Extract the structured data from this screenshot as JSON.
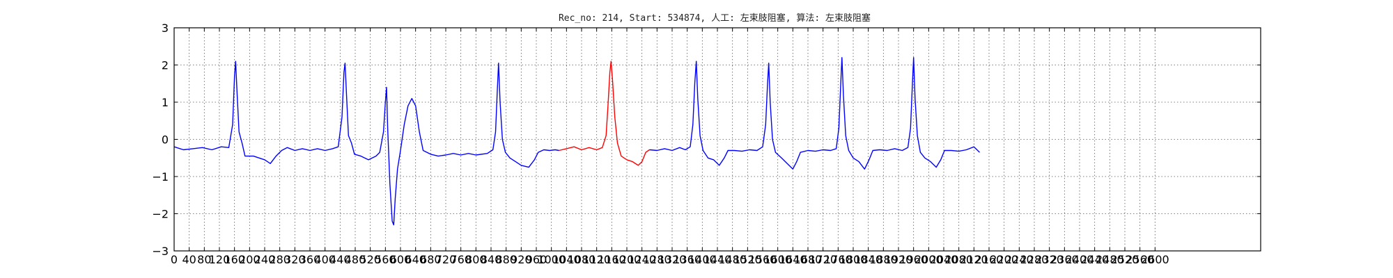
{
  "chart_data": {
    "type": "line",
    "title": "Rec_no: 214, Start: 534874, 人工: 左束肢阻塞, 算法: 左束肢阻塞",
    "xlabel": "",
    "ylabel": "",
    "xlim": [
      0,
      2880
    ],
    "ylim": [
      -3,
      3
    ],
    "grid": true,
    "legend": "none",
    "yticks": [
      -3,
      -2,
      -1,
      0,
      1,
      2,
      3
    ],
    "ytick_labels": [
      "−3",
      "−2",
      "−1",
      "0",
      "1",
      "2",
      "3"
    ],
    "xticks": [
      0,
      40,
      80,
      120,
      160,
      200,
      240,
      280,
      320,
      360,
      400,
      440,
      480,
      520,
      560,
      600,
      640,
      680,
      720,
      760,
      800,
      840,
      880,
      920,
      960,
      1000,
      1040,
      1080,
      1120,
      1160,
      1200,
      1240,
      1280,
      1320,
      1360,
      1400,
      1440,
      1480,
      1520,
      1560,
      1600,
      1640,
      1680,
      1720,
      1760,
      1800,
      1840,
      1880,
      1920,
      1960,
      2000,
      2040,
      2080,
      2120,
      2160,
      2200,
      2240,
      2280,
      2320,
      2360,
      2400,
      2440,
      2480,
      2520,
      2560,
      2600
    ],
    "xtick_labels": [
      "0",
      "40",
      "80",
      "120",
      "160",
      "200",
      "240",
      "280",
      "320",
      "360",
      "400",
      "440",
      "480",
      "520",
      "560",
      "600",
      "640",
      "680",
      "720",
      "760",
      "800",
      "840",
      "880",
      "920",
      "960",
      "1000",
      "1040",
      "1080",
      "1120",
      "1160",
      "1200",
      "1240",
      "1280",
      "1320",
      "1360",
      "1400",
      "1440",
      "1480",
      "1520",
      "1560",
      "1600",
      "1640",
      "1680",
      "1720",
      "1760",
      "1800",
      "1840",
      "1880",
      "1920",
      "1960",
      "2000",
      "2040",
      "2080",
      "2120",
      "2160",
      "2200",
      "2240",
      "2280",
      "2320",
      "2360",
      "2400",
      "2440",
      "2480",
      "2520",
      "2560",
      "2600"
    ],
    "series": [
      {
        "color": "#0000ff",
        "points": [
          [
            0,
            -0.2
          ],
          [
            25,
            -0.28
          ],
          [
            50,
            -0.25
          ],
          [
            75,
            -0.22
          ],
          [
            100,
            -0.28
          ],
          [
            125,
            -0.2
          ],
          [
            145,
            -0.22
          ],
          [
            155,
            0.4
          ],
          [
            160,
            1.7
          ],
          [
            163,
            2.1
          ],
          [
            167,
            1.2
          ],
          [
            172,
            0.2
          ],
          [
            180,
            -0.1
          ],
          [
            188,
            -0.45
          ],
          [
            210,
            -0.45
          ],
          [
            240,
            -0.55
          ],
          [
            255,
            -0.65
          ],
          [
            270,
            -0.45
          ],
          [
            285,
            -0.3
          ],
          [
            300,
            -0.22
          ],
          [
            320,
            -0.3
          ],
          [
            340,
            -0.25
          ],
          [
            360,
            -0.3
          ],
          [
            380,
            -0.25
          ],
          [
            400,
            -0.3
          ],
          [
            420,
            -0.25
          ],
          [
            435,
            -0.2
          ],
          [
            445,
            0.6
          ],
          [
            450,
            1.8
          ],
          [
            453,
            2.05
          ],
          [
            457,
            1.2
          ],
          [
            462,
            0.1
          ],
          [
            470,
            -0.1
          ],
          [
            478,
            -0.4
          ],
          [
            495,
            -0.45
          ],
          [
            515,
            -0.55
          ],
          [
            535,
            -0.45
          ],
          [
            545,
            -0.35
          ],
          [
            555,
            0.2
          ],
          [
            560,
            1.0
          ],
          [
            563,
            1.4
          ],
          [
            566,
            0.3
          ],
          [
            572,
            -1.2
          ],
          [
            578,
            -2.2
          ],
          [
            582,
            -2.3
          ],
          [
            586,
            -1.6
          ],
          [
            592,
            -0.8
          ],
          [
            600,
            -0.3
          ],
          [
            610,
            0.4
          ],
          [
            620,
            0.9
          ],
          [
            630,
            1.1
          ],
          [
            640,
            0.9
          ],
          [
            650,
            0.2
          ],
          [
            660,
            -0.3
          ],
          [
            680,
            -0.4
          ],
          [
            700,
            -0.45
          ],
          [
            720,
            -0.42
          ],
          [
            740,
            -0.38
          ],
          [
            760,
            -0.42
          ],
          [
            780,
            -0.38
          ],
          [
            800,
            -0.42
          ],
          [
            830,
            -0.38
          ],
          [
            845,
            -0.28
          ],
          [
            852,
            0.2
          ],
          [
            857,
            1.4
          ],
          [
            860,
            2.05
          ],
          [
            864,
            1.0
          ],
          [
            870,
            0.0
          ],
          [
            878,
            -0.35
          ],
          [
            890,
            -0.5
          ],
          [
            905,
            -0.6
          ],
          [
            920,
            -0.7
          ],
          [
            940,
            -0.75
          ],
          [
            955,
            -0.55
          ],
          [
            965,
            -0.35
          ],
          [
            980,
            -0.28
          ],
          [
            995,
            -0.3
          ],
          [
            1010,
            -0.28
          ],
          [
            1020,
            -0.3
          ]
        ]
      },
      {
        "color": "#ff0000",
        "points": [
          [
            1020,
            -0.3
          ],
          [
            1040,
            -0.25
          ],
          [
            1060,
            -0.2
          ],
          [
            1080,
            -0.28
          ],
          [
            1100,
            -0.22
          ],
          [
            1120,
            -0.28
          ],
          [
            1135,
            -0.22
          ],
          [
            1145,
            0.1
          ],
          [
            1150,
            0.9
          ],
          [
            1155,
            1.8
          ],
          [
            1158,
            2.1
          ],
          [
            1162,
            1.6
          ],
          [
            1168,
            0.6
          ],
          [
            1175,
            -0.1
          ],
          [
            1185,
            -0.45
          ],
          [
            1200,
            -0.55
          ],
          [
            1215,
            -0.6
          ],
          [
            1230,
            -0.7
          ],
          [
            1240,
            -0.6
          ],
          [
            1250,
            -0.35
          ],
          [
            1260,
            -0.28
          ]
        ]
      },
      {
        "color": "#0000ff",
        "points": [
          [
            1260,
            -0.28
          ],
          [
            1280,
            -0.3
          ],
          [
            1300,
            -0.25
          ],
          [
            1320,
            -0.3
          ],
          [
            1340,
            -0.22
          ],
          [
            1355,
            -0.28
          ],
          [
            1368,
            -0.2
          ],
          [
            1375,
            0.4
          ],
          [
            1380,
            1.5
          ],
          [
            1384,
            2.1
          ],
          [
            1388,
            1.1
          ],
          [
            1394,
            0.1
          ],
          [
            1402,
            -0.3
          ],
          [
            1415,
            -0.5
          ],
          [
            1430,
            -0.55
          ],
          [
            1445,
            -0.7
          ],
          [
            1458,
            -0.5
          ],
          [
            1468,
            -0.3
          ],
          [
            1485,
            -0.3
          ],
          [
            1505,
            -0.32
          ],
          [
            1525,
            -0.28
          ],
          [
            1545,
            -0.3
          ],
          [
            1560,
            -0.2
          ],
          [
            1568,
            0.4
          ],
          [
            1573,
            1.5
          ],
          [
            1576,
            2.05
          ],
          [
            1580,
            1.0
          ],
          [
            1586,
            0.0
          ],
          [
            1594,
            -0.35
          ],
          [
            1610,
            -0.5
          ],
          [
            1625,
            -0.65
          ],
          [
            1640,
            -0.8
          ],
          [
            1650,
            -0.6
          ],
          [
            1660,
            -0.35
          ],
          [
            1680,
            -0.3
          ],
          [
            1700,
            -0.32
          ],
          [
            1720,
            -0.28
          ],
          [
            1740,
            -0.3
          ],
          [
            1755,
            -0.25
          ],
          [
            1762,
            0.3
          ],
          [
            1767,
            1.5
          ],
          [
            1770,
            2.2
          ],
          [
            1774,
            1.2
          ],
          [
            1780,
            0.1
          ],
          [
            1788,
            -0.3
          ],
          [
            1800,
            -0.5
          ],
          [
            1815,
            -0.6
          ],
          [
            1830,
            -0.8
          ],
          [
            1842,
            -0.55
          ],
          [
            1852,
            -0.3
          ],
          [
            1870,
            -0.28
          ],
          [
            1890,
            -0.3
          ],
          [
            1910,
            -0.25
          ],
          [
            1930,
            -0.3
          ],
          [
            1945,
            -0.22
          ],
          [
            1952,
            0.3
          ],
          [
            1957,
            1.5
          ],
          [
            1960,
            2.2
          ],
          [
            1964,
            1.1
          ],
          [
            1970,
            0.1
          ],
          [
            1978,
            -0.35
          ],
          [
            1990,
            -0.5
          ],
          [
            2005,
            -0.6
          ],
          [
            2020,
            -0.75
          ],
          [
            2032,
            -0.55
          ],
          [
            2042,
            -0.3
          ],
          [
            2060,
            -0.3
          ],
          [
            2080,
            -0.32
          ],
          [
            2100,
            -0.28
          ],
          [
            2120,
            -0.2
          ],
          [
            2135,
            -0.35
          ]
        ]
      }
    ]
  }
}
